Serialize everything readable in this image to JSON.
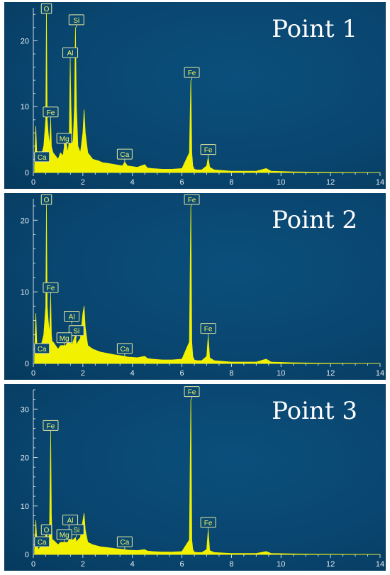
{
  "chart_data": [
    {
      "type": "area",
      "title": "Point 1",
      "xlim": [
        0,
        14
      ],
      "ylim": [
        0,
        25
      ],
      "x_ticks": [
        "0",
        "2",
        "4",
        "6",
        "8",
        "10",
        "12",
        "14"
      ],
      "y_ticks": [
        "0",
        "10",
        "20"
      ],
      "series_color": "#f2f200",
      "x": [
        0.05,
        0.1,
        0.15,
        0.2,
        0.28,
        0.35,
        0.42,
        0.5,
        0.53,
        0.56,
        0.6,
        0.65,
        0.7,
        0.73,
        0.76,
        0.8,
        0.9,
        1.0,
        1.1,
        1.2,
        1.25,
        1.3,
        1.35,
        1.4,
        1.45,
        1.49,
        1.52,
        1.56,
        1.6,
        1.66,
        1.7,
        1.74,
        1.8,
        1.9,
        2.0,
        2.05,
        2.1,
        2.2,
        2.4,
        2.6,
        2.8,
        3.0,
        3.3,
        3.6,
        3.69,
        3.8,
        4.2,
        4.5,
        4.6,
        4.8,
        5.2,
        5.6,
        6.0,
        6.3,
        6.36,
        6.4,
        6.44,
        6.5,
        6.6,
        6.8,
        7.0,
        7.06,
        7.12,
        7.3,
        8.0,
        9.0,
        9.4,
        9.6,
        10.5,
        11.5,
        14.0
      ],
      "y": [
        1.0,
        7.0,
        2.0,
        1.5,
        2.0,
        3.0,
        4.0,
        8.0,
        25.0,
        8.0,
        6.0,
        4.0,
        8.0,
        4.0,
        3.5,
        3.0,
        2.5,
        2.0,
        3.0,
        2.5,
        4.0,
        5.0,
        4.0,
        3.0,
        5.0,
        17.0,
        10.0,
        5.0,
        4.0,
        10.0,
        22.0,
        10.0,
        4.0,
        3.0,
        6.0,
        9.5,
        6.0,
        3.0,
        2.0,
        1.8,
        1.5,
        1.4,
        1.2,
        1.0,
        1.6,
        1.0,
        0.8,
        1.2,
        0.7,
        0.6,
        0.5,
        0.5,
        0.6,
        3.0,
        14.0,
        3.0,
        1.0,
        0.5,
        0.4,
        0.4,
        1.0,
        2.3,
        0.8,
        0.4,
        0.2,
        0.2,
        0.6,
        0.2,
        0.1,
        0.05,
        0.0
      ],
      "peak_labels": [
        {
          "label": "O",
          "x": 0.53,
          "y": 25.0
        },
        {
          "label": "Si",
          "x": 1.74,
          "y": 22.0
        },
        {
          "label": "Al",
          "x": 1.49,
          "y": 17.0
        },
        {
          "label": "Fe",
          "x": 6.4,
          "y": 14.0
        },
        {
          "label": "Fe",
          "x": 0.7,
          "y": 8.0
        },
        {
          "label": "Mg",
          "x": 1.25,
          "y": 4.0
        },
        {
          "label": "Ca",
          "x": 0.35,
          "y": 1.2
        },
        {
          "label": "Ca",
          "x": 3.69,
          "y": 1.6
        },
        {
          "label": "Fe",
          "x": 7.06,
          "y": 2.3
        }
      ]
    },
    {
      "type": "area",
      "title": "Point 2",
      "xlim": [
        0,
        14
      ],
      "ylim": [
        0,
        23
      ],
      "x_ticks": [
        "0",
        "2",
        "4",
        "6",
        "8",
        "10",
        "12",
        "14"
      ],
      "y_ticks": [
        "0",
        "10",
        "20"
      ],
      "series_color": "#f2f200",
      "x": [
        0.05,
        0.1,
        0.15,
        0.2,
        0.28,
        0.35,
        0.42,
        0.5,
        0.53,
        0.56,
        0.6,
        0.65,
        0.7,
        0.73,
        0.76,
        0.8,
        0.9,
        1.0,
        1.1,
        1.2,
        1.25,
        1.3,
        1.4,
        1.49,
        1.55,
        1.6,
        1.7,
        1.74,
        1.8,
        1.9,
        2.0,
        2.05,
        2.1,
        2.2,
        2.4,
        2.7,
        3.0,
        3.3,
        3.69,
        3.8,
        4.2,
        4.5,
        4.6,
        4.8,
        5.2,
        5.6,
        6.0,
        6.3,
        6.36,
        6.4,
        6.44,
        6.5,
        6.6,
        6.8,
        7.0,
        7.06,
        7.12,
        7.3,
        8.0,
        9.0,
        9.4,
        9.6,
        10.5,
        11.5,
        14.0
      ],
      "y": [
        1.0,
        7.0,
        2.0,
        1.5,
        2.0,
        3.0,
        4.0,
        8.0,
        22.0,
        8.0,
        6.0,
        4.0,
        9.5,
        4.0,
        3.0,
        3.0,
        2.5,
        2.0,
        2.5,
        2.5,
        2.5,
        2.5,
        3.0,
        4.0,
        2.5,
        3.0,
        4.0,
        2.5,
        3.0,
        3.5,
        7.0,
        8.0,
        5.0,
        2.5,
        2.0,
        1.6,
        1.4,
        1.2,
        1.0,
        0.9,
        0.8,
        1.0,
        0.7,
        0.6,
        0.5,
        0.5,
        0.6,
        3.0,
        22.0,
        3.0,
        1.0,
        0.5,
        0.4,
        0.4,
        1.0,
        3.8,
        0.8,
        0.4,
        0.2,
        0.2,
        0.6,
        0.2,
        0.1,
        0.05,
        0.0
      ],
      "peak_labels": [
        {
          "label": "O",
          "x": 0.53,
          "y": 22.0
        },
        {
          "label": "Fe",
          "x": 6.4,
          "y": 22.0
        },
        {
          "label": "Fe",
          "x": 0.7,
          "y": 9.5
        },
        {
          "label": "Al",
          "x": 1.55,
          "y": 5.5
        },
        {
          "label": "Si",
          "x": 1.74,
          "y": 3.5
        },
        {
          "label": "Mg",
          "x": 1.25,
          "y": 2.5
        },
        {
          "label": "Ca",
          "x": 0.35,
          "y": 1.0
        },
        {
          "label": "Ca",
          "x": 3.69,
          "y": 1.0
        },
        {
          "label": "Fe",
          "x": 7.06,
          "y": 3.8
        }
      ]
    },
    {
      "type": "area",
      "title": "Point 3",
      "xlim": [
        0,
        14
      ],
      "ylim": [
        0,
        34
      ],
      "x_ticks": [
        "0",
        "2",
        "4",
        "6",
        "8",
        "10",
        "12",
        "14"
      ],
      "y_ticks": [
        "0",
        "10",
        "20",
        "30"
      ],
      "series_color": "#f2f200",
      "x": [
        0.05,
        0.1,
        0.15,
        0.2,
        0.28,
        0.35,
        0.42,
        0.5,
        0.53,
        0.56,
        0.6,
        0.65,
        0.7,
        0.73,
        0.76,
        0.8,
        0.9,
        1.0,
        1.1,
        1.2,
        1.25,
        1.3,
        1.4,
        1.49,
        1.55,
        1.6,
        1.7,
        1.74,
        1.8,
        1.9,
        2.0,
        2.05,
        2.1,
        2.2,
        2.4,
        2.7,
        3.0,
        3.3,
        3.69,
        3.8,
        4.2,
        4.5,
        4.6,
        4.8,
        5.2,
        5.6,
        6.0,
        6.3,
        6.36,
        6.4,
        6.44,
        6.5,
        6.6,
        6.8,
        7.0,
        7.06,
        7.12,
        7.3,
        8.0,
        9.0,
        9.4,
        9.6,
        10.5,
        11.5,
        14.0
      ],
      "y": [
        1.0,
        7.0,
        2.0,
        1.0,
        1.5,
        2.0,
        2.5,
        4.0,
        6.0,
        3.0,
        3.5,
        4.0,
        25.0,
        8.0,
        3.0,
        3.0,
        2.5,
        2.0,
        2.5,
        2.5,
        2.5,
        2.5,
        2.5,
        4.0,
        3.0,
        3.0,
        3.5,
        2.5,
        3.0,
        3.5,
        7.0,
        8.5,
        5.0,
        2.5,
        2.0,
        1.6,
        1.4,
        1.2,
        1.0,
        0.9,
        0.8,
        1.0,
        0.7,
        0.6,
        0.5,
        0.5,
        0.6,
        3.0,
        32.0,
        3.0,
        1.0,
        0.5,
        0.4,
        0.4,
        1.0,
        5.0,
        0.8,
        0.4,
        0.2,
        0.2,
        0.6,
        0.2,
        0.1,
        0.05,
        0.0
      ],
      "peak_labels": [
        {
          "label": "Fe",
          "x": 6.4,
          "y": 32.0
        },
        {
          "label": "Fe",
          "x": 0.7,
          "y": 25.0
        },
        {
          "label": "Al",
          "x": 1.49,
          "y": 5.5
        },
        {
          "label": "O",
          "x": 0.53,
          "y": 3.5
        },
        {
          "label": "Si",
          "x": 1.74,
          "y": 3.5
        },
        {
          "label": "Mg",
          "x": 1.25,
          "y": 2.5
        },
        {
          "label": "Ca",
          "x": 0.35,
          "y": 1.0
        },
        {
          "label": "Ca",
          "x": 3.69,
          "y": 1.0
        },
        {
          "label": "Fe",
          "x": 7.06,
          "y": 5.0
        }
      ]
    }
  ]
}
